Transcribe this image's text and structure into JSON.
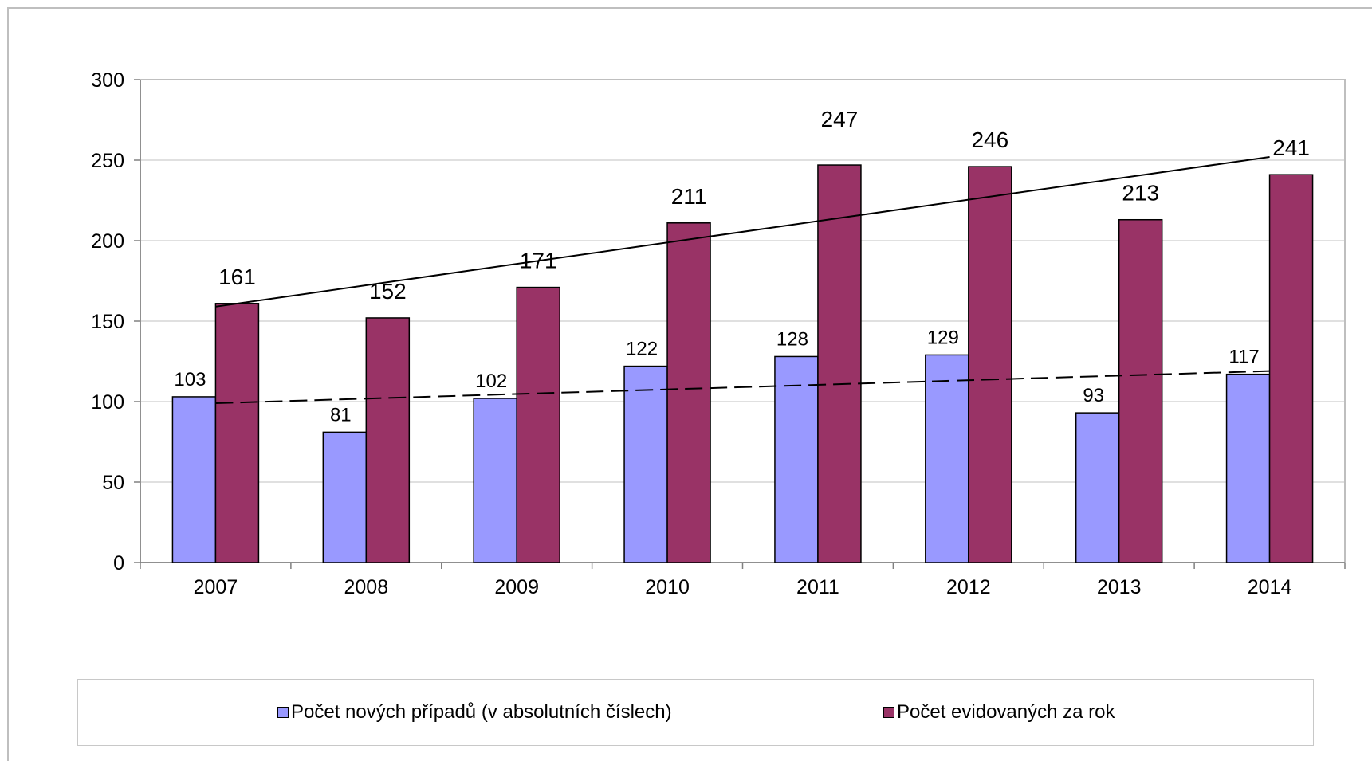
{
  "chart_data": {
    "type": "bar",
    "categories": [
      "2007",
      "2008",
      "2009",
      "2010",
      "2011",
      "2012",
      "2013",
      "2014"
    ],
    "series": [
      {
        "name": "Počet nových případů (v absolutních číslech)",
        "values": [
          103,
          81,
          102,
          122,
          128,
          129,
          93,
          117
        ],
        "color": "#9999ff",
        "trendline": {
          "style": "dashed",
          "start": 99,
          "end": 119
        }
      },
      {
        "name": "Počet evidovaných za rok",
        "values": [
          161,
          152,
          171,
          211,
          247,
          246,
          213,
          241
        ],
        "color": "#993366",
        "trendline": {
          "style": "solid",
          "start": 159,
          "end": 252
        }
      }
    ],
    "yticks": [
      "0",
      "50",
      "100",
      "150",
      "200",
      "250",
      "300"
    ],
    "ylim": [
      0,
      300
    ],
    "title": "",
    "xlabel": "",
    "ylabel": "",
    "grid": "horizontal",
    "legend_position": "bottom",
    "plot_background": "#ffffff",
    "gridline_color": "#c0c0c0"
  }
}
